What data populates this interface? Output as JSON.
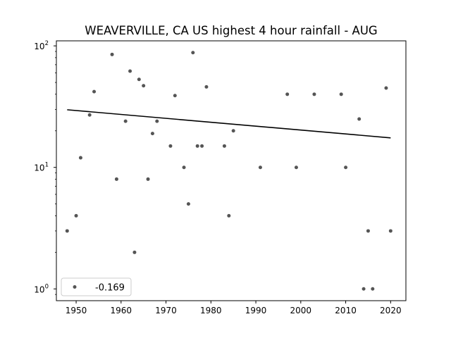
{
  "chart_data": {
    "type": "scatter",
    "title": "WEAVERVILLE, CA US highest 4 hour rainfall - AUG",
    "xlabel": "",
    "ylabel": "",
    "yscale": "log",
    "xlim": [
      1945.6,
      2023.4
    ],
    "ylim": [
      0.8,
      110
    ],
    "x_ticks": [
      1950,
      1960,
      1970,
      1980,
      1990,
      2000,
      2010,
      2020
    ],
    "y_ticks": [
      {
        "value": 1,
        "base": "10",
        "exp": "0"
      },
      {
        "value": 10,
        "base": "10",
        "exp": "1"
      },
      {
        "value": 100,
        "base": "10",
        "exp": "2"
      }
    ],
    "points": [
      {
        "x": 1948,
        "y": 3
      },
      {
        "x": 1950,
        "y": 4
      },
      {
        "x": 1951,
        "y": 12
      },
      {
        "x": 1953,
        "y": 27
      },
      {
        "x": 1954,
        "y": 42
      },
      {
        "x": 1958,
        "y": 85
      },
      {
        "x": 1959,
        "y": 8
      },
      {
        "x": 1961,
        "y": 24
      },
      {
        "x": 1962,
        "y": 62
      },
      {
        "x": 1963,
        "y": 2
      },
      {
        "x": 1964,
        "y": 53
      },
      {
        "x": 1965,
        "y": 47
      },
      {
        "x": 1966,
        "y": 8
      },
      {
        "x": 1967,
        "y": 19
      },
      {
        "x": 1968,
        "y": 24
      },
      {
        "x": 1971,
        "y": 15
      },
      {
        "x": 1972,
        "y": 39
      },
      {
        "x": 1974,
        "y": 10
      },
      {
        "x": 1975,
        "y": 5
      },
      {
        "x": 1976,
        "y": 88
      },
      {
        "x": 1977,
        "y": 15
      },
      {
        "x": 1978,
        "y": 15
      },
      {
        "x": 1979,
        "y": 46
      },
      {
        "x": 1983,
        "y": 15
      },
      {
        "x": 1984,
        "y": 4
      },
      {
        "x": 1985,
        "y": 20
      },
      {
        "x": 1991,
        "y": 10
      },
      {
        "x": 1997,
        "y": 40
      },
      {
        "x": 1999,
        "y": 10
      },
      {
        "x": 2003,
        "y": 40
      },
      {
        "x": 2009,
        "y": 40
      },
      {
        "x": 2010,
        "y": 10
      },
      {
        "x": 2013,
        "y": 25
      },
      {
        "x": 2014,
        "y": 1
      },
      {
        "x": 2015,
        "y": 3
      },
      {
        "x": 2016,
        "y": 1
      },
      {
        "x": 2019,
        "y": 45
      },
      {
        "x": 2020,
        "y": 3
      }
    ],
    "trend_line": {
      "x": [
        1948,
        2020
      ],
      "y": [
        29.8,
        17.5
      ]
    },
    "legend": {
      "label": "-0.169",
      "location": "lower-left"
    },
    "colors": {
      "points": "#555555",
      "trend": "#000000"
    }
  }
}
